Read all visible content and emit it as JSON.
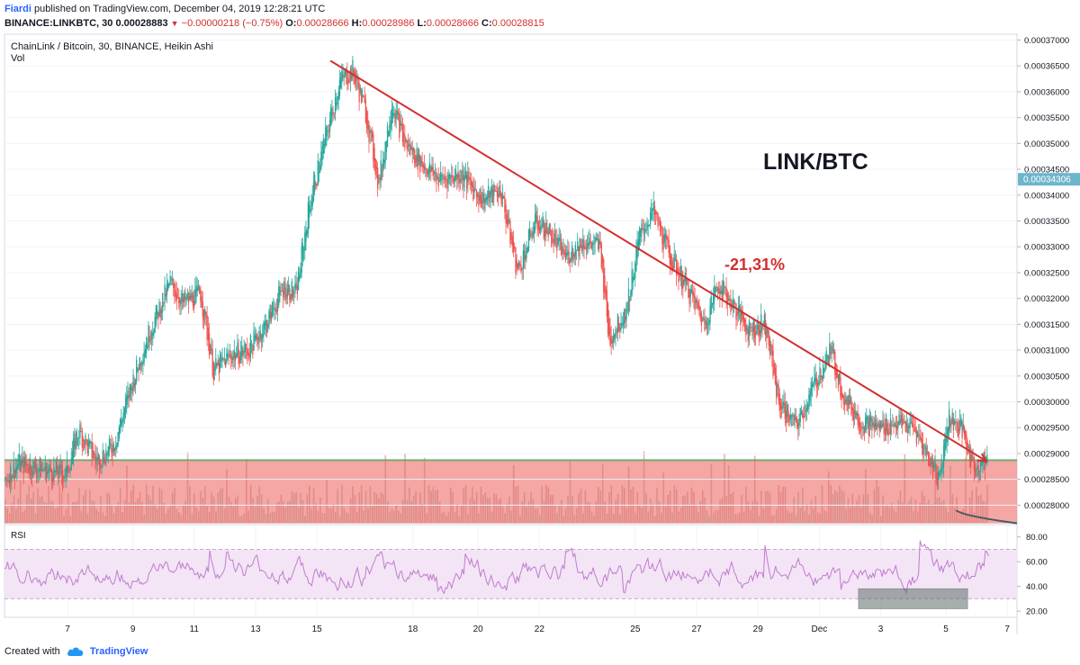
{
  "header": {
    "author": "Fiardi",
    "published": "published on TradingView.com, December 04, 2019 12:28:21 UTC"
  },
  "quote": {
    "symbol": "BINANCE:LINKBTC, 30",
    "last": "0.00028883",
    "change": "−0.00000218 (−0.75%)",
    "o_label": "O:",
    "o": "0.00028666",
    "h_label": "H:",
    "h": "0.00028986",
    "l_label": "L:",
    "l": "0.00028666",
    "c_label": "C:",
    "c": "0.00028815"
  },
  "footer": {
    "created_with": "Created with",
    "brand": "TradingView"
  },
  "colors": {
    "up": "#26a69a",
    "down": "#ef5350",
    "trendline": "#d32f2f",
    "support_zone": "#f08a86",
    "support_line": "#6fae6f",
    "rsi_line": "#c27bd1",
    "rsi_band": "#f3e5f5",
    "last_price_tag": "#6cb6cc"
  },
  "chart_data": [
    {
      "type": "candlestick",
      "title": "ChainLink / Bitcoin, 30, BINANCE, Heikin Ashi",
      "volume_label": "Vol",
      "annotation_title": "LINK/BTC",
      "annotation_change": "-21,31%",
      "last_price_label": "0.00034306",
      "ylim": [
        0.0002765,
        0.00037
      ],
      "y_ticks": [
        "0.00037000",
        "0.00036500",
        "0.00036000",
        "0.00035500",
        "0.00035000",
        "0.00034500",
        "0.00034000",
        "0.00033500",
        "0.00033000",
        "0.00032500",
        "0.00032000",
        "0.00031500",
        "0.00031000",
        "0.00030500",
        "0.00030000",
        "0.00029500",
        "0.00029000",
        "0.00028500",
        "0.00028000"
      ],
      "x_ticks": [
        "7",
        "9",
        "11",
        "13",
        "15",
        "18",
        "20",
        "22",
        "25",
        "27",
        "29",
        "Dec",
        "3",
        "5",
        "7"
      ],
      "price_path": [
        [
          0,
          0.000285
        ],
        [
          3,
          0.000288
        ],
        [
          8,
          0.000287
        ],
        [
          14,
          0.000286
        ],
        [
          17,
          0.0002945
        ],
        [
          21,
          0.0002885
        ],
        [
          25,
          0.0002915
        ],
        [
          29,
          0.000303
        ],
        [
          33,
          0.000313
        ],
        [
          38,
          0.000323
        ],
        [
          41,
          0.000319
        ],
        [
          45,
          0.000321
        ],
        [
          48,
          0.000306
        ],
        [
          52,
          0.000309
        ],
        [
          56,
          0.00031
        ],
        [
          60,
          0.000315
        ],
        [
          64,
          0.000322
        ],
        [
          67,
          0.000321
        ],
        [
          70,
          0.000338
        ],
        [
          74,
          0.000352
        ],
        [
          77,
          0.000362
        ],
        [
          80,
          0.000364
        ],
        [
          83,
          0.000356
        ],
        [
          86,
          0.000342
        ],
        [
          89,
          0.000358
        ],
        [
          92,
          0.00035
        ],
        [
          96,
          0.000346
        ],
        [
          100,
          0.000343
        ],
        [
          105,
          0.000344
        ],
        [
          110,
          0.000339
        ],
        [
          114,
          0.000341
        ],
        [
          118,
          0.000325
        ],
        [
          122,
          0.000335
        ],
        [
          125,
          0.000333
        ],
        [
          129,
          0.000328
        ],
        [
          133,
          0.000331
        ],
        [
          137,
          0.00033
        ],
        [
          139,
          0.000312
        ],
        [
          143,
          0.000318
        ],
        [
          146,
          0.000332
        ],
        [
          149,
          0.000337
        ],
        [
          153,
          0.000328
        ],
        [
          157,
          0.000322
        ],
        [
          161,
          0.000315
        ],
        [
          164,
          0.000323
        ],
        [
          168,
          0.000318
        ],
        [
          171,
          0.000314
        ],
        [
          175,
          0.000315
        ],
        [
          178,
          0.0003
        ],
        [
          182,
          0.000295
        ],
        [
          186,
          0.000303
        ],
        [
          190,
          0.00031
        ],
        [
          193,
          0.000301
        ],
        [
          197,
          0.000296
        ],
        [
          201,
          0.000295
        ],
        [
          205,
          0.000296
        ],
        [
          209,
          0.000295
        ],
        [
          212,
          0.00029
        ],
        [
          215,
          0.000285
        ],
        [
          217,
          0.000297
        ],
        [
          220,
          0.000295
        ],
        [
          223,
          0.000287
        ],
        [
          226,
          0.000289
        ]
      ],
      "trendline": {
        "start": [
          75,
          0.000366
        ],
        "end": [
          226,
          0.0002885
        ]
      },
      "support_zone": {
        "top": 0.0002887,
        "bottom": 0.0002765
      },
      "lower_curve": {
        "start": [
          219,
          0.000279
        ],
        "end": [
          233,
          0.0002765
        ]
      }
    },
    {
      "type": "line",
      "title": "RSI",
      "ylim": [
        15,
        90
      ],
      "y_ticks": [
        "80.00",
        "60.00",
        "40.00",
        "20.00"
      ],
      "band": [
        30,
        70
      ],
      "highlight_box": {
        "x": [
          212,
          252
        ],
        "y": [
          22,
          38
        ]
      }
    }
  ]
}
